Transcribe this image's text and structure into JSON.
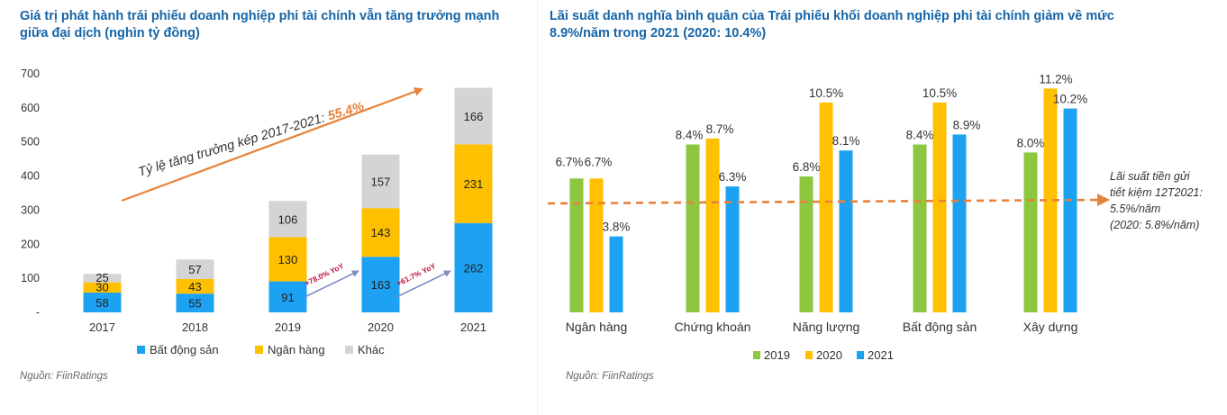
{
  "left": {
    "title": "Giá trị phát hành trái phiếu doanh nghiệp phi tài chính vẫn tăng trưởng mạnh giữa đại dịch (nghìn tỷ đồng)",
    "source": "Nguồn: FiinRatings",
    "cagr_label": "Tỷ lệ tăng trưởng kép 2017-2021: ",
    "cagr_value": "55.4%",
    "yoy_labels": [
      "+78.0% YoY",
      "+61.7% YoY"
    ],
    "zero_tick_label": "-",
    "colors": {
      "real_estate": "#1da1f2",
      "banking": "#ffc000",
      "other": "#d4d4d4",
      "arrow": "#e8823a",
      "yoy_text": "#c0143c",
      "yoy_arrow": "#7f8fc0"
    }
  },
  "right": {
    "title": "Lãi suất danh nghĩa bình quân của Trái phiếu khối doanh nghiệp phi tài chính giảm về mức 8.9%/năm trong 2021 (2020: 10.4%)",
    "source": "Nguồn: FiinRatings",
    "annotation_lines": [
      "Lãi suất tiền gửi",
      "tiết kiệm 12T2021:",
      "5.5%/năm",
      "(2020: 5.8%/năm)"
    ],
    "colors": {
      "y2019": "#8dc63f",
      "y2020": "#ffc000",
      "y2021": "#1da1f2",
      "ref_line": "#e8823a"
    }
  },
  "chart_data": [
    {
      "type": "bar",
      "stacked": true,
      "title": "Giá trị phát hành trái phiếu doanh nghiệp phi tài chính vẫn tăng trưởng mạnh giữa đại dịch (nghìn tỷ đồng)",
      "categories": [
        "2017",
        "2018",
        "2019",
        "2020",
        "2021"
      ],
      "series": [
        {
          "name": "Bất động sản",
          "values": [
            58,
            55,
            91,
            163,
            262
          ]
        },
        {
          "name": "Ngân hàng",
          "values": [
            30,
            43,
            130,
            143,
            231
          ]
        },
        {
          "name": "Khác",
          "values": [
            25,
            57,
            106,
            157,
            166
          ]
        }
      ],
      "ylim": [
        0,
        700
      ],
      "yticks": [
        0,
        100,
        200,
        300,
        400,
        500,
        600,
        700
      ],
      "xlabel": "",
      "ylabel": "",
      "legend": "bottom",
      "annotations": [
        "Tỷ lệ tăng trưởng kép 2017-2021: 55.4%",
        "+78.0% YoY",
        "+61.7% YoY"
      ]
    },
    {
      "type": "bar",
      "title": "Lãi suất danh nghĩa bình quân của Trái phiếu khối doanh nghiệp phi tài chính giảm về mức 8.9%/năm trong 2021 (2020: 10.4%)",
      "categories": [
        "Ngân hàng",
        "Chứng khoán",
        "Năng lượng",
        "Bất động sản",
        "Xây dựng"
      ],
      "series": [
        {
          "name": "2019",
          "values": [
            6.7,
            8.4,
            6.8,
            8.4,
            8.0
          ]
        },
        {
          "name": "2020",
          "values": [
            6.7,
            8.7,
            10.5,
            10.5,
            11.2
          ]
        },
        {
          "name": "2021",
          "values": [
            3.8,
            6.3,
            8.1,
            8.9,
            10.2
          ]
        }
      ],
      "value_suffix": "%",
      "ylim": [
        0,
        12
      ],
      "reference_line": {
        "value": 5.5,
        "label": "Lãi suất tiền gửi tiết kiệm 12T2021: 5.5%/năm (2020: 5.8%/năm)"
      },
      "legend": "bottom"
    }
  ]
}
